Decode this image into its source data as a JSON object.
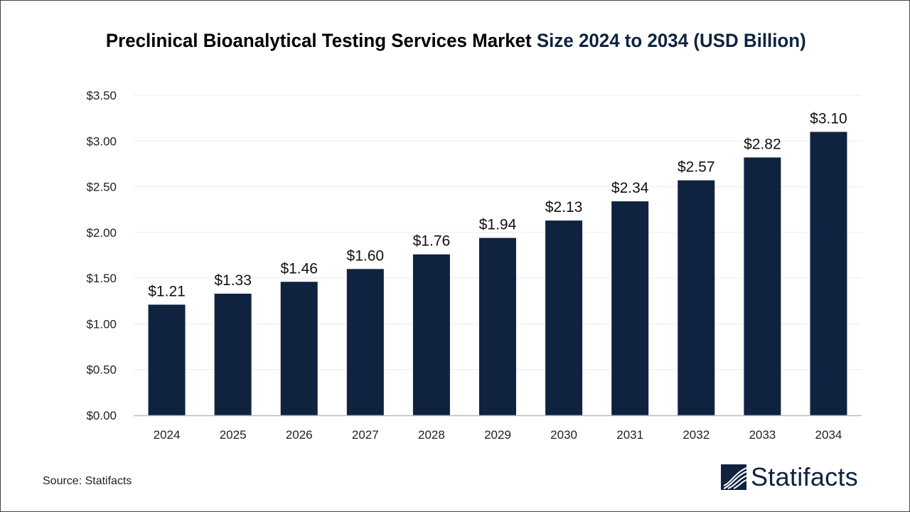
{
  "title_main": "Preclinical Bioanalytical Testing Services Market ",
  "title_highlight": "Size 2024 to 2034  (USD Billion)",
  "source": "Source: Statifacts",
  "logo_text": "Statifacts",
  "colors": {
    "bar": "#0f2340",
    "title_highlight": "#0f2340",
    "grid": "#ececec"
  },
  "chart_data": {
    "type": "bar",
    "title": "Preclinical Bioanalytical Testing Services Market Size 2024 to 2034  (USD Billion)",
    "categories": [
      "2024",
      "2025",
      "2026",
      "2027",
      "2028",
      "2029",
      "2030",
      "2031",
      "2032",
      "2033",
      "2034"
    ],
    "values": [
      1.21,
      1.33,
      1.46,
      1.6,
      1.76,
      1.94,
      2.13,
      2.34,
      2.57,
      2.82,
      3.1
    ],
    "data_labels": [
      "$1.21",
      "$1.33",
      "$1.46",
      "$1.60",
      "$1.76",
      "$1.94",
      "$2.13",
      "$2.34",
      "$2.57",
      "$2.82",
      "$3.10"
    ],
    "yticks": [
      0,
      0.5,
      1,
      1.5,
      2,
      2.5,
      3,
      3.5
    ],
    "ytick_labels": [
      "$0.00",
      "$0.50",
      "$1.00",
      "$1.50",
      "$2.00",
      "$2.50",
      "$3.00",
      "$3.50"
    ],
    "ylim": [
      0,
      3.5
    ],
    "xlabel": "",
    "ylabel": "",
    "grid": true,
    "legend": "none"
  }
}
